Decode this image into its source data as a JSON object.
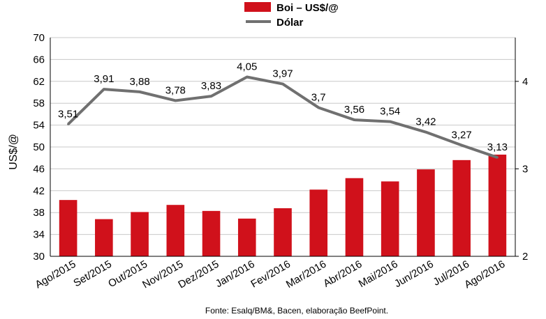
{
  "chart_data": {
    "type": "bar+line",
    "categories": [
      "Ago/2015",
      "Set/2015",
      "Out/2015",
      "Nov/2015",
      "Dez/2015",
      "Jan/2016",
      "Fev/2016",
      "Mar/2016",
      "Abr/2016",
      "Mai/2016",
      "Jun/2016",
      "Jul/2016",
      "Ago/2016"
    ],
    "series": [
      {
        "name": "Boi – US$/@",
        "type": "bar",
        "axis": "left",
        "color": "#d0111b",
        "values": [
          40.3,
          36.8,
          38.1,
          39.4,
          38.3,
          36.9,
          38.8,
          42.2,
          44.3,
          43.7,
          45.9,
          47.6,
          48.6
        ]
      },
      {
        "name": "Dólar",
        "type": "line",
        "axis": "right",
        "color": "#707070",
        "values": [
          3.51,
          3.91,
          3.88,
          3.78,
          3.83,
          4.05,
          3.97,
          3.7,
          3.56,
          3.54,
          3.42,
          3.27,
          3.13
        ],
        "labels": [
          "3,51",
          "3,91",
          "3,88",
          "3,78",
          "3,83",
          "4,05",
          "3,97",
          "3,7",
          "3,56",
          "3,54",
          "3,42",
          "3,27",
          "3,13"
        ]
      }
    ],
    "ylabel": "US$/@",
    "ylim": [
      30,
      70
    ],
    "yticks": [
      "30",
      "34",
      "38",
      "42",
      "46",
      "50",
      "54",
      "58",
      "62",
      "66",
      "70"
    ],
    "y2lim": [
      2,
      4.5
    ],
    "y2ticks": [
      "2",
      "3",
      "4"
    ],
    "grid": "horizontal",
    "legend": "top-center",
    "source": "Fonte:  Esalq/BM&,  Bacen,  elaboração  BeefPoint."
  }
}
